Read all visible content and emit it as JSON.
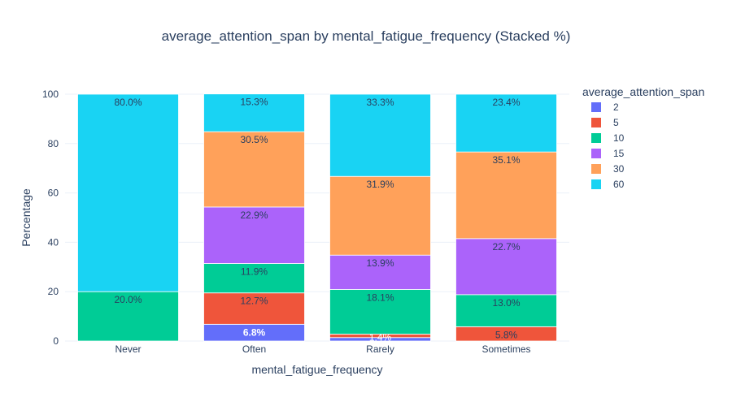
{
  "chart_data": {
    "type": "bar",
    "stacked": true,
    "title": "average_attention_span by mental_fatigue_frequency (Stacked %)",
    "xlabel": "mental_fatigue_frequency",
    "ylabel": "Percentage",
    "ylim": [
      0,
      100
    ],
    "yticks": [
      0,
      20,
      40,
      60,
      80,
      100
    ],
    "grid": true,
    "legend_title": "average_attention_span",
    "legend_position": "right",
    "categories": [
      "Never",
      "Often",
      "Rarely",
      "Sometimes"
    ],
    "series": [
      {
        "name": "2",
        "color": "#636efa",
        "values": [
          0,
          6.8,
          1.4,
          0
        ],
        "labels": [
          "",
          "6.8%",
          "1.4%",
          ""
        ]
      },
      {
        "name": "5",
        "color": "#ef553b",
        "values": [
          0,
          12.7,
          1.4,
          5.8
        ],
        "labels": [
          "",
          "12.7%",
          "",
          "5.8%"
        ]
      },
      {
        "name": "10",
        "color": "#00cc96",
        "values": [
          20.0,
          11.9,
          18.1,
          13.0
        ],
        "labels": [
          "20.0%",
          "11.9%",
          "18.1%",
          "13.0%"
        ]
      },
      {
        "name": "15",
        "color": "#ab63fa",
        "values": [
          0,
          22.9,
          13.9,
          22.7
        ],
        "labels": [
          "",
          "22.9%",
          "13.9%",
          "22.7%"
        ]
      },
      {
        "name": "30",
        "color": "#ffa15a",
        "values": [
          0,
          30.5,
          31.9,
          35.1
        ],
        "labels": [
          "",
          "30.5%",
          "31.9%",
          "35.1%"
        ]
      },
      {
        "name": "60",
        "color": "#19d3f3",
        "values": [
          80.0,
          15.3,
          33.3,
          23.4
        ],
        "labels": [
          "80.0%",
          "15.3%",
          "33.3%",
          "23.4%"
        ]
      }
    ]
  }
}
